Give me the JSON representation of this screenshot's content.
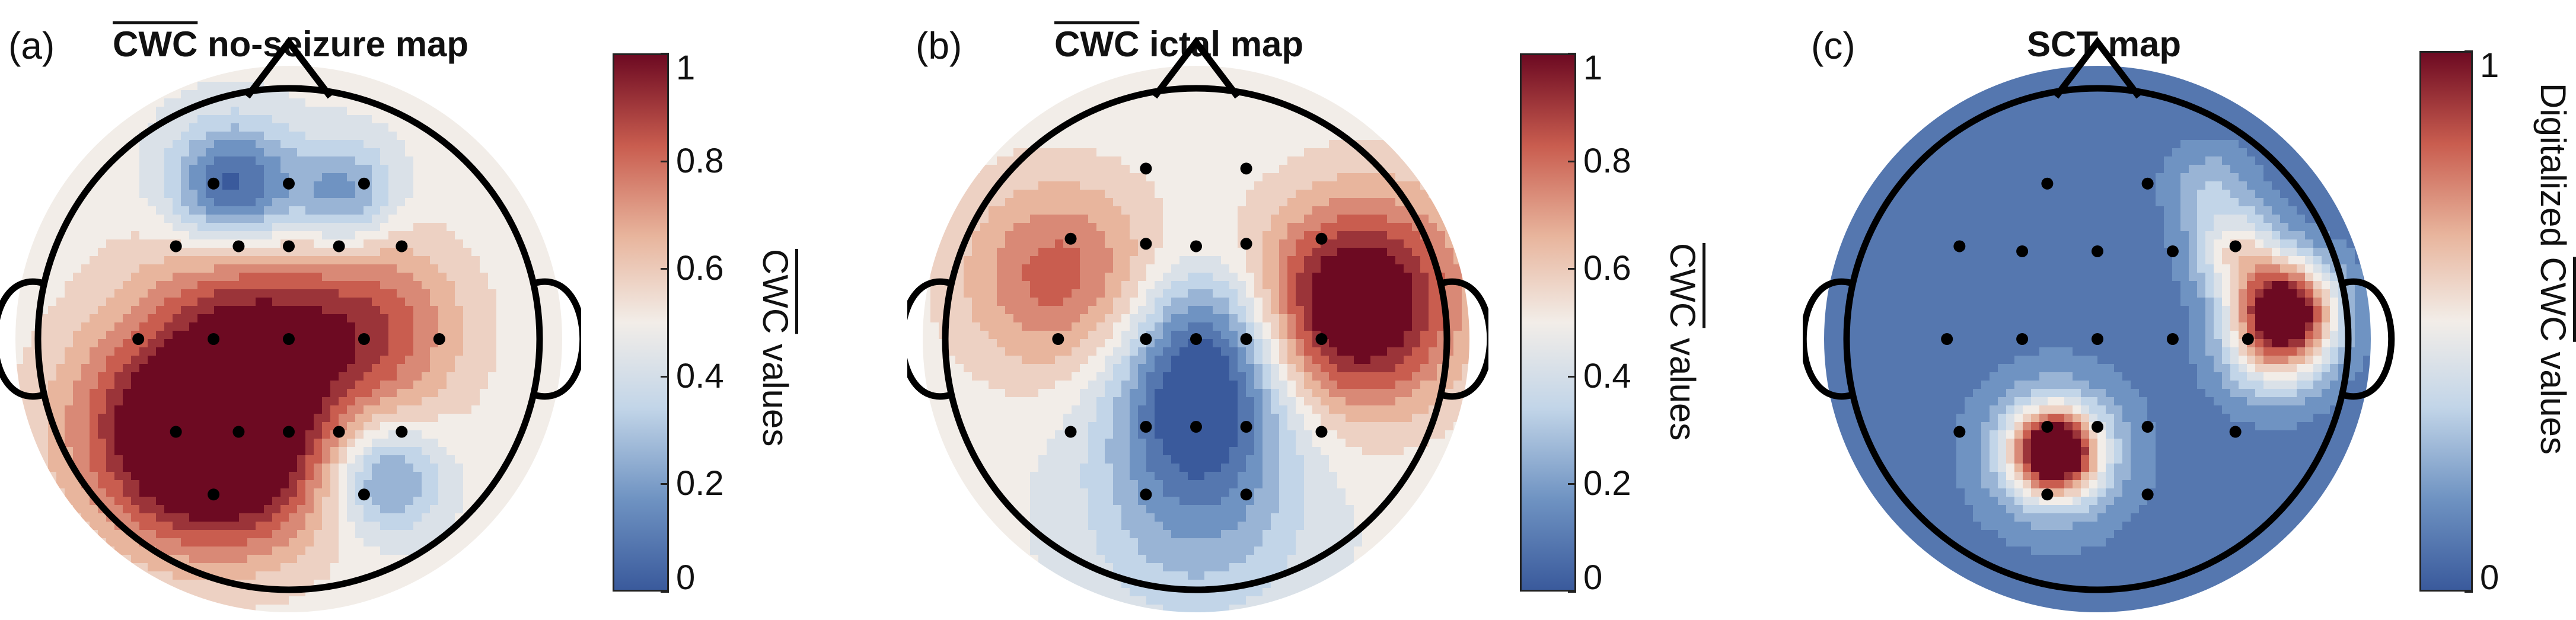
{
  "panels": [
    {
      "label": "(a)",
      "title_prefix": "CWC",
      "title_suffix": " no-seizure map",
      "title_overline": true,
      "cbar_label_prefix": "",
      "cbar_label_ov": "CWC",
      "cbar_label_suffix": " values",
      "ticks": [
        "0",
        "0.2",
        "0.4",
        "0.6",
        "0.8",
        "1"
      ]
    },
    {
      "label": "(b)",
      "title_prefix": "CWC",
      "title_suffix": " ictal map",
      "title_overline": true,
      "cbar_label_prefix": "",
      "cbar_label_ov": "CWC",
      "cbar_label_suffix": " values",
      "ticks": [
        "0",
        "0.2",
        "0.4",
        "0.6",
        "0.8",
        "1"
      ]
    },
    {
      "label": "(c)",
      "title_prefix": "",
      "title_suffix": "SCT map",
      "title_overline": false,
      "cbar_label_prefix": "Digitalized ",
      "cbar_label_ov": "CWC",
      "cbar_label_suffix": " values",
      "ticks": [
        "0",
        "1"
      ]
    }
  ],
  "chart_data": [
    {
      "type": "heatmap",
      "title": "CWC no-seizure map",
      "colorbar": {
        "label": "CWC values",
        "range": [
          0,
          1
        ],
        "ticks": [
          0,
          0.2,
          0.4,
          0.6,
          0.8,
          1
        ]
      },
      "colormap": [
        "#3a5a9c",
        "#6f93c2",
        "#c2d5e8",
        "#f2ede8",
        "#e8b59d",
        "#c95d4f",
        "#6d0a22"
      ],
      "electrodes": [
        [
          -0.3,
          0.62
        ],
        [
          0,
          0.62
        ],
        [
          0.3,
          0.62
        ],
        [
          -0.45,
          0.37
        ],
        [
          -0.2,
          0.37
        ],
        [
          0,
          0.37
        ],
        [
          0.2,
          0.37
        ],
        [
          0.45,
          0.37
        ],
        [
          -0.6,
          0
        ],
        [
          -0.3,
          0
        ],
        [
          0,
          0
        ],
        [
          0.3,
          0
        ],
        [
          0.6,
          0
        ],
        [
          -0.45,
          -0.37
        ],
        [
          -0.2,
          -0.37
        ],
        [
          0,
          -0.37
        ],
        [
          0.2,
          -0.37
        ],
        [
          0.45,
          -0.37
        ],
        [
          -0.3,
          -0.62
        ],
        [
          0.3,
          -0.62
        ]
      ],
      "blobs": [
        [
          -0.22,
          0.6,
          -0.55,
          0.18
        ],
        [
          0.22,
          0.58,
          -0.35,
          0.15
        ],
        [
          -0.1,
          0.12,
          0.3,
          0.3
        ],
        [
          0.35,
          0.05,
          0.25,
          0.25
        ],
        [
          -0.05,
          -0.1,
          0.15,
          0.45
        ],
        [
          -0.25,
          -0.45,
          0.55,
          0.28
        ],
        [
          -0.55,
          -0.35,
          0.3,
          0.3
        ],
        [
          0.38,
          -0.55,
          -0.38,
          0.16
        ],
        [
          0.1,
          0.3,
          -0.1,
          0.2
        ]
      ],
      "base": 0.48
    },
    {
      "type": "heatmap",
      "title": "CWC ictal map",
      "colorbar": {
        "label": "CWC values",
        "range": [
          0,
          1
        ],
        "ticks": [
          0,
          0.2,
          0.4,
          0.6,
          0.8,
          1
        ]
      },
      "colormap": [
        "#3a5a9c",
        "#6f93c2",
        "#c2d5e8",
        "#f2ede8",
        "#e8b59d",
        "#c95d4f",
        "#6d0a22"
      ],
      "electrodes": [
        [
          -0.2,
          0.68
        ],
        [
          0.2,
          0.68
        ],
        [
          -0.5,
          0.4
        ],
        [
          -0.2,
          0.38
        ],
        [
          0,
          0.37
        ],
        [
          0.2,
          0.38
        ],
        [
          0.5,
          0.4
        ],
        [
          -0.55,
          0
        ],
        [
          -0.2,
          0
        ],
        [
          0,
          0
        ],
        [
          0.2,
          0
        ],
        [
          0.5,
          0
        ],
        [
          -0.5,
          -0.37
        ],
        [
          -0.2,
          -0.35
        ],
        [
          0,
          -0.35
        ],
        [
          0.2,
          -0.35
        ],
        [
          0.5,
          -0.37
        ],
        [
          -0.2,
          -0.62
        ],
        [
          0.2,
          -0.62
        ]
      ],
      "blobs": [
        [
          -0.55,
          0.25,
          0.35,
          0.28
        ],
        [
          0.62,
          0.1,
          0.55,
          0.28
        ],
        [
          0.02,
          -0.25,
          -0.45,
          0.25
        ],
        [
          0.05,
          0.05,
          -0.25,
          0.2
        ],
        [
          0,
          -0.7,
          -0.25,
          0.3
        ],
        [
          0.75,
          0.3,
          0.15,
          0.3
        ]
      ],
      "base": 0.48
    },
    {
      "type": "heatmap",
      "title": "SCT map",
      "colorbar": {
        "label": "Digitalized CWC values",
        "range": [
          0,
          1
        ],
        "ticks": [
          0,
          1
        ]
      },
      "colormap": [
        "#3a5a9c",
        "#6f93c2",
        "#c2d5e8",
        "#f2ede8",
        "#e8b59d",
        "#c95d4f",
        "#6d0a22"
      ],
      "electrodes": [
        [
          -0.2,
          0.62
        ],
        [
          0.2,
          0.62
        ],
        [
          -0.55,
          0.37
        ],
        [
          -0.3,
          0.35
        ],
        [
          0,
          0.35
        ],
        [
          0.3,
          0.35
        ],
        [
          0.55,
          0.37
        ],
        [
          -0.6,
          0
        ],
        [
          -0.3,
          0
        ],
        [
          0,
          0
        ],
        [
          0.3,
          0
        ],
        [
          0.6,
          0
        ],
        [
          -0.55,
          -0.37
        ],
        [
          -0.2,
          -0.35
        ],
        [
          0,
          -0.35
        ],
        [
          0.2,
          -0.35
        ],
        [
          0.55,
          -0.37
        ],
        [
          -0.2,
          -0.62
        ],
        [
          0.2,
          -0.62
        ]
      ],
      "blobs": [
        [
          0.75,
          0.12,
          0.95,
          0.14
        ],
        [
          -0.17,
          -0.45,
          0.95,
          0.11
        ],
        [
          0.55,
          0.35,
          0.4,
          0.12
        ],
        [
          0.7,
          -0.05,
          0.35,
          0.15
        ],
        [
          -0.17,
          -0.45,
          0.35,
          0.2
        ],
        [
          0.45,
          0.6,
          0.2,
          0.12
        ]
      ],
      "base": 0.08
    }
  ]
}
